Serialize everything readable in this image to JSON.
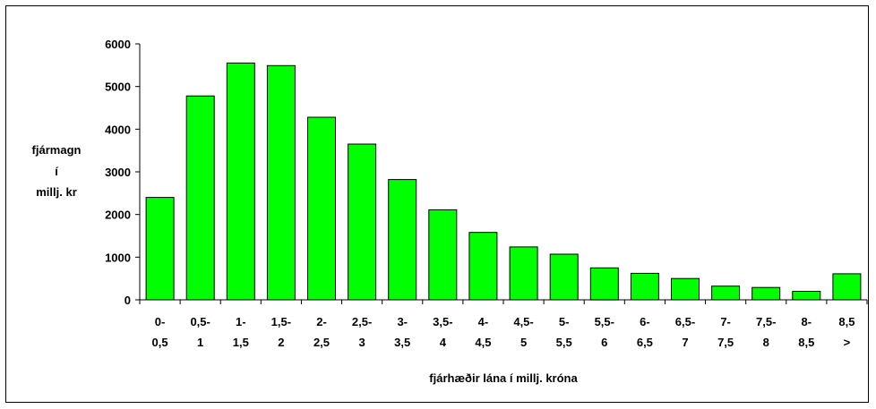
{
  "chart_data": {
    "type": "bar",
    "title": "",
    "ylabel_lines": [
      "fjármagn",
      "í",
      "millj. kr"
    ],
    "xlabel": "fjárhæðir lána í millj. króna",
    "ylim": [
      0,
      6000
    ],
    "yticks": [
      "0",
      "1000",
      "2000",
      "3000",
      "4000",
      "5000",
      "6000"
    ],
    "ytick_values": [
      0,
      1000,
      2000,
      3000,
      4000,
      5000,
      6000
    ],
    "grid": false,
    "legend": "none",
    "bar_color": "#00ff00",
    "categories": [
      [
        "0-",
        "0,5"
      ],
      [
        "0,5-",
        "1"
      ],
      [
        "1-",
        "1,5"
      ],
      [
        "1,5-",
        "2"
      ],
      [
        "2-",
        "2,5"
      ],
      [
        "2,5-",
        "3"
      ],
      [
        "3-",
        "3,5"
      ],
      [
        "3,5-",
        "4"
      ],
      [
        "4-",
        "4,5"
      ],
      [
        "4,5-",
        "5"
      ],
      [
        "5-",
        "5,5"
      ],
      [
        "5,5-",
        "6"
      ],
      [
        "6-",
        "6,5"
      ],
      [
        "6,5-",
        "7"
      ],
      [
        "7-",
        "7,5"
      ],
      [
        "7,5-",
        "8"
      ],
      [
        "8-",
        "8,5"
      ],
      [
        "8,5",
        ">"
      ]
    ],
    "values": [
      2400,
      4780,
      5550,
      5490,
      4280,
      3650,
      2820,
      2110,
      1580,
      1240,
      1070,
      750,
      620,
      500,
      320,
      290,
      200,
      610
    ]
  }
}
